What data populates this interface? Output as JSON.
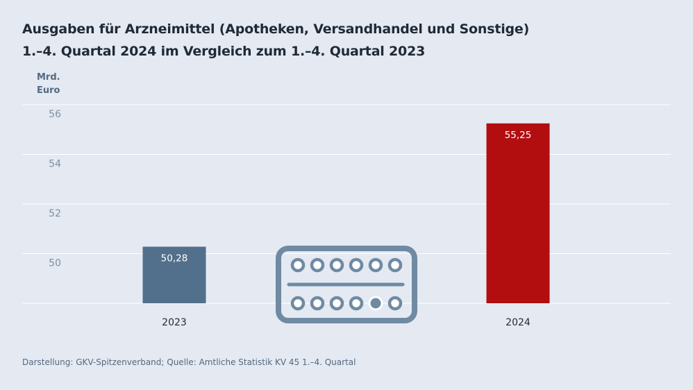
{
  "title": {
    "line1": "Ausgaben für Arzneimittel (Apotheken, Versandhandel und Sonstige)",
    "line2": "1.–4. Quartal 2024 im Vergleich zum 1.–4. Quartal 2023"
  },
  "unit": {
    "line1": "Mrd.",
    "line2": "Euro"
  },
  "source": "Darstellung: GKV-Spitzenverband; Quelle: Amtliche Statistik KV 45 1.–4. Quartal",
  "icon": "pill-blister-icon",
  "colors": {
    "background": "#e4e9f2",
    "bar_2023": "#52708b",
    "bar_2024": "#b20e10",
    "grid": "#ffffff",
    "tick": "#7f8fa0",
    "icon": "#6f8aa3"
  },
  "chart_data": {
    "type": "bar",
    "title": "Ausgaben für Arzneimittel (Apotheken, Versandhandel und Sonstige) 1.–4. Quartal 2024 im Vergleich zum 1.–4. Quartal 2023",
    "xlabel": "",
    "ylabel": "Mrd. Euro",
    "categories": [
      "2023",
      "2024"
    ],
    "values": [
      50.28,
      55.25
    ],
    "value_labels": [
      "50,28",
      "55,25"
    ],
    "ylim": [
      48,
      56
    ],
    "yticks": [
      50,
      52,
      54,
      56
    ],
    "grid": true,
    "legend": "none"
  }
}
